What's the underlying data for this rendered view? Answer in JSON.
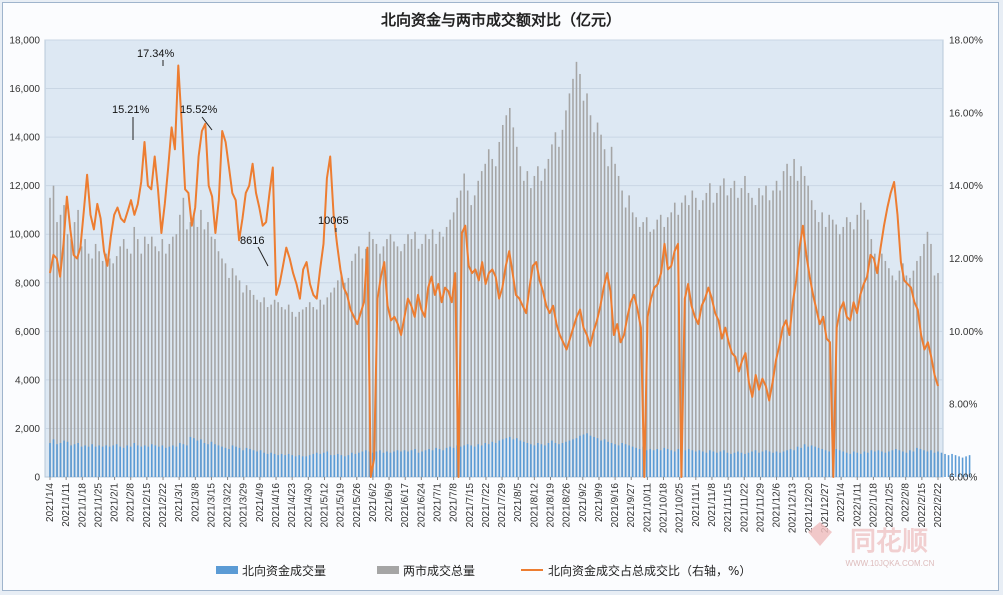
{
  "chart_data": {
    "type": "bar+line",
    "title": "北向资金与两市成交额对比（亿元）",
    "ylim_left": [
      0,
      18000
    ],
    "left_ticks": [
      "0",
      "2,000",
      "4,000",
      "6,000",
      "8,000",
      "10,000",
      "12,000",
      "14,000",
      "16,000",
      "18,000"
    ],
    "left_tick_values": [
      0,
      2000,
      4000,
      6000,
      8000,
      10000,
      12000,
      14000,
      16000,
      18000
    ],
    "ylim_right": [
      6,
      18
    ],
    "right_ticks": [
      "6.00%",
      "8.00%",
      "10.00%",
      "12.00%",
      "14.00%",
      "16.00%",
      "18.00%"
    ],
    "right_tick_values": [
      6,
      8,
      10,
      12,
      14,
      16,
      18
    ],
    "x_ticks": [
      "2021/1/4",
      "2021/1/11",
      "2021/1/18",
      "2021/1/25",
      "2021/2/1",
      "2021/2/8",
      "2021/2/15",
      "2021/2/22",
      "2021/3/1",
      "2021/3/8",
      "2021/3/15",
      "2021/3/22",
      "2021/3/29",
      "2021/4/9",
      "2021/4/16",
      "2021/4/23",
      "2021/4/30",
      "2021/5/12",
      "2021/5/19",
      "2021/5/26",
      "2021/6/2",
      "2021/6/9",
      "2021/6/17",
      "2021/6/24",
      "2021/7/1",
      "2021/7/8",
      "2021/7/15",
      "2021/7/22",
      "2021/7/29",
      "2021/8/5",
      "2021/8/12",
      "2021/8/19",
      "2021/8/26",
      "2021/9/2",
      "2021/9/9",
      "2021/9/16",
      "2021/9/27",
      "2021/10/11",
      "2021/10/18",
      "2021/10/25",
      "2021/11/1",
      "2021/11/8",
      "2021/11/15",
      "2021/11/22",
      "2021/11/29",
      "2021/12/6",
      "2021/12/13",
      "2021/12/20",
      "2021/12/27",
      "2022/1/4",
      "2022/1/11",
      "2022/1/18",
      "2022/1/25",
      "2022/2/8",
      "2022/2/15",
      "2022/2/22"
    ],
    "series": [
      {
        "name": "北向资金成交量",
        "axis": "left",
        "kind": "bar",
        "color": "#5b9bd5",
        "values": [
          1400,
          1550,
          1350,
          1400,
          1500,
          1450,
          1300,
          1350,
          1400,
          1250,
          1300,
          1250,
          1350,
          1250,
          1300,
          1250,
          1300,
          1250,
          1300,
          1350,
          1250,
          1200,
          1300,
          1250,
          1400,
          1300,
          1250,
          1300,
          1250,
          1350,
          1300,
          1250,
          1300,
          1200,
          1250,
          1300,
          1250,
          1400,
          1350,
          1300,
          1650,
          1600,
          1500,
          1550,
          1400,
          1350,
          1450,
          1350,
          1300,
          1250,
          1200,
          1150,
          1300,
          1250,
          1200,
          1100,
          1200,
          1150,
          1100,
          1050,
          1100,
          1000,
          950,
          1000,
          950,
          900,
          950,
          900,
          950,
          900,
          850,
          900,
          850,
          850,
          900,
          950,
          1000,
          950,
          1000,
          1050,
          900,
          900,
          950,
          900,
          850,
          900,
          1000,
          950,
          1000,
          1050,
          1100,
          1050,
          1000,
          1050,
          1100,
          1000,
          1050,
          1000,
          1050,
          1100,
          1050,
          1100,
          1050,
          1100,
          1150,
          1000,
          1050,
          1100,
          1150,
          1100,
          1200,
          1150,
          1100,
          1200,
          1250,
          1200,
          1300,
          1250,
          1300,
          1350,
          1300,
          1250,
          1350,
          1300,
          1400,
          1350,
          1450,
          1400,
          1500,
          1550,
          1600,
          1650,
          1550,
          1600,
          1500,
          1450,
          1400,
          1350,
          1300,
          1400,
          1350,
          1300,
          1400,
          1500,
          1400,
          1350,
          1400,
          1450,
          1500,
          1550,
          1600,
          1700,
          1750,
          1800,
          1700,
          1650,
          1600,
          1500,
          1550,
          1450,
          1400,
          1350,
          1300,
          1400,
          1350,
          1300,
          1250,
          1200,
          1150,
          1250,
          1100,
          1150,
          1100,
          1150,
          1100,
          1200,
          1150,
          1100,
          1050,
          1150,
          1200,
          1100,
          1150,
          1100,
          1050,
          1100,
          1050,
          1000,
          1100,
          1050,
          1000,
          1050,
          1100,
          1000,
          950,
          1000,
          1050,
          1000,
          950,
          1000,
          1050,
          1100,
          1000,
          1050,
          1100,
          1050,
          1000,
          1050,
          1000,
          1050,
          1100,
          1150,
          1100,
          1250,
          1200,
          1350,
          1250,
          1300,
          1250,
          1200,
          1150,
          1100,
          1050,
          1100,
          1150,
          1100,
          1050,
          1000,
          950,
          1050,
          1000,
          950,
          1050,
          1000,
          1100,
          1050,
          1100,
          1050,
          1000,
          1050,
          1100,
          1150,
          1100,
          1050,
          1000,
          1100,
          1050,
          1200,
          1150,
          1100,
          1050,
          1100,
          1000,
          1050,
          1000,
          950,
          900,
          950,
          900,
          850,
          800,
          850,
          900
        ]
      },
      {
        "name": "两市成交总量",
        "axis": "left",
        "kind": "bar",
        "color": "#a5a5a5",
        "values": [
          11500,
          12000,
          10500,
          10800,
          11200,
          10000,
          9800,
          10500,
          11000,
          9500,
          9800,
          9200,
          9000,
          9600,
          9300,
          8900,
          9200,
          9000,
          8800,
          9100,
          9500,
          9800,
          9400,
          9200,
          10300,
          9800,
          9200,
          9900,
          9600,
          9900,
          9500,
          9300,
          9800,
          9200,
          9600,
          9900,
          10000,
          10800,
          11500,
          10200,
          10500,
          10800,
          10300,
          11000,
          10200,
          10500,
          9900,
          9800,
          9300,
          9000,
          8800,
          8200,
          8600,
          8300,
          8100,
          7600,
          7900,
          7700,
          7500,
          7300,
          7200,
          7400,
          7000,
          7100,
          7300,
          7200,
          7000,
          6900,
          7100,
          6800,
          6600,
          6800,
          6900,
          7000,
          7200,
          7000,
          6900,
          7300,
          7100,
          7400,
          7600,
          7800,
          8100,
          8300,
          8000,
          8200,
          8900,
          9200,
          9500,
          9000,
          9400,
          10100,
          9800,
          9600,
          9200,
          9500,
          9800,
          10000,
          9700,
          9500,
          9300,
          9600,
          10000,
          9800,
          10100,
          9400,
          9600,
          10000,
          9800,
          10200,
          9600,
          10100,
          9900,
          10300,
          10600,
          10900,
          11500,
          11800,
          12500,
          11800,
          11200,
          11600,
          12200,
          12600,
          12900,
          13500,
          13100,
          12800,
          13800,
          14500,
          14900,
          15200,
          14400,
          13600,
          12800,
          12200,
          12600,
          11900,
          12400,
          12800,
          12200,
          12700,
          13100,
          13700,
          14200,
          13600,
          14300,
          15100,
          15800,
          16400,
          17100,
          16600,
          15500,
          15800,
          14900,
          14200,
          14600,
          14100,
          13500,
          12800,
          13600,
          12900,
          12400,
          11800,
          11100,
          11600,
          10900,
          10700,
          10300,
          10500,
          10700,
          10100,
          10200,
          10600,
          10800,
          10300,
          10700,
          10900,
          11300,
          10800,
          11300,
          11600,
          11200,
          11800,
          11500,
          11000,
          11400,
          11700,
          12100,
          11300,
          11700,
          12000,
          12300,
          11600,
          11900,
          12200,
          11500,
          11900,
          12400,
          11700,
          11500,
          11200,
          11900,
          11600,
          12000,
          11400,
          11800,
          12200,
          11800,
          12600,
          12900,
          12400,
          13100,
          12200,
          12800,
          12400,
          12000,
          11400,
          11000,
          10500,
          10900,
          10300,
          10800,
          10600,
          10400,
          10000,
          10300,
          10700,
          10500,
          10200,
          10800,
          11300,
          11000,
          10600,
          9800,
          9200,
          8800,
          9200,
          8900,
          8600,
          8300,
          8100,
          8500,
          8800,
          8300,
          8200,
          8500,
          8900,
          9100,
          9600,
          10100,
          9600,
          8300,
          8400
        ]
      },
      {
        "name": "北向资金成交占总成交比（右轴，%）",
        "axis": "right",
        "kind": "line",
        "color": "#ed7d31",
        "values": [
          11.6,
          12.1,
          12.0,
          11.5,
          12.4,
          13.7,
          12.8,
          12.1,
          12.0,
          12.3,
          13.3,
          14.3,
          13.2,
          12.8,
          13.5,
          13.1,
          12.2,
          11.8,
          12.6,
          13.2,
          13.4,
          13.1,
          13.0,
          13.3,
          13.6,
          13.2,
          13.5,
          14.1,
          15.2,
          14.0,
          13.9,
          14.8,
          13.9,
          12.7,
          13.5,
          14.5,
          15.6,
          15.0,
          17.3,
          15.7,
          13.9,
          13.8,
          12.9,
          13.4,
          14.8,
          15.5,
          15.7,
          14.0,
          13.7,
          12.7,
          13.6,
          15.5,
          15.2,
          14.5,
          13.8,
          13.6,
          12.5,
          13.1,
          13.8,
          14.0,
          14.6,
          13.8,
          13.4,
          12.9,
          13.0,
          13.8,
          14.5,
          11.0,
          11.3,
          11.8,
          12.3,
          12.0,
          11.6,
          11.3,
          10.9,
          11.7,
          11.9,
          11.3,
          11.0,
          10.9,
          11.7,
          12.4,
          14.2,
          14.8,
          13.2,
          12.4,
          11.7,
          11.2,
          11.0,
          10.6,
          10.4,
          10.2,
          10.5,
          10.8,
          12.3,
          6.0,
          6.5,
          10.9,
          11.5,
          11.9,
          10.7,
          10.3,
          10.4,
          10.2,
          9.9,
          10.4,
          10.9,
          10.7,
          10.4,
          11.0,
          10.6,
          10.4,
          11.2,
          11.5,
          11.0,
          11.3,
          10.8,
          11.2,
          11.1,
          10.8,
          11.6,
          6.0,
          12.7,
          12.9,
          11.8,
          11.6,
          11.7,
          11.4,
          11.9,
          11.3,
          11.6,
          11.7,
          11.5,
          10.9,
          11.2,
          11.8,
          12.2,
          11.6,
          11.0,
          10.9,
          10.7,
          10.5,
          11.2,
          11.8,
          11.9,
          11.4,
          11.1,
          10.7,
          10.5,
          10.7,
          10.2,
          9.9,
          9.7,
          9.5,
          9.8,
          10.1,
          10.4,
          10.6,
          10.1,
          9.9,
          9.6,
          10.0,
          10.3,
          10.7,
          11.2,
          11.6,
          11.1,
          9.9,
          10.2,
          9.7,
          9.9,
          10.4,
          10.8,
          11.0,
          10.6,
          10.1,
          6.0,
          10.4,
          10.9,
          11.2,
          11.3,
          11.6,
          12.4,
          11.7,
          11.8,
          12.2,
          12.4,
          6.0,
          10.9,
          11.3,
          10.7,
          10.4,
          10.2,
          10.7,
          10.9,
          11.2,
          10.9,
          10.5,
          10.3,
          9.8,
          10.1,
          9.7,
          9.4,
          9.3,
          8.9,
          9.2,
          9.4,
          8.6,
          8.2,
          8.8,
          8.4,
          8.7,
          8.5,
          8.1,
          8.6,
          9.2,
          9.6,
          10.1,
          10.3,
          9.9,
          10.8,
          11.4,
          12.3,
          12.9,
          12.1,
          11.5,
          11.0,
          10.6,
          10.2,
          10.4,
          9.8,
          9.7,
          6.0,
          10.1,
          10.6,
          10.8,
          10.4,
          10.3,
          10.8,
          10.5,
          11.0,
          11.3,
          11.5,
          12.1,
          12.0,
          11.6,
          12.3,
          12.9,
          13.4,
          13.8,
          14.1,
          13.2,
          11.9,
          11.4,
          11.3,
          11.2,
          10.8,
          10.6,
          9.9,
          9.5,
          9.7,
          9.3,
          8.8,
          8.5
        ]
      }
    ],
    "annotations": [
      {
        "text": "17.34%",
        "target": "peak 2021/3/1"
      },
      {
        "text": "15.21%",
        "target": "2021/2/8"
      },
      {
        "text": "15.52%",
        "target": "2021/3/22"
      },
      {
        "text": "8616",
        "target": "2021/4/16"
      },
      {
        "text": "10065",
        "target": "2021/5/26"
      }
    ]
  },
  "legend": {
    "north": "北向资金成交量",
    "total": "两市成交总量",
    "ratio": "北向资金成交占总成交比（右轴，%）"
  },
  "watermark": {
    "brand": "同花顺",
    "url": "WWW.10JQKA.COM.CN"
  }
}
